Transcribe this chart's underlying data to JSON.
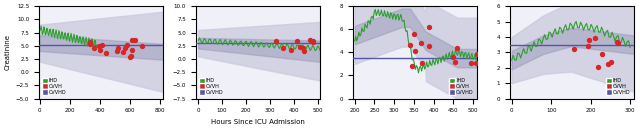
{
  "figure_title": "Hours Since ICU Admission",
  "ylabel": "Creatinine",
  "panels": [
    {
      "xlim": [
        -5,
        820
      ],
      "ylim": [
        -5.0,
        12.5
      ],
      "yticks": [
        -5.0,
        -2.5,
        0.0,
        2.5,
        5.0,
        7.5,
        10.0,
        12.5
      ],
      "xticks": [
        0,
        200,
        400,
        600,
        800
      ]
    },
    {
      "xlim": [
        -10,
        510
      ],
      "ylim": [
        -7.5,
        10.0
      ],
      "yticks": [
        -7.5,
        -5.0,
        -2.5,
        0.0,
        2.5,
        5.0,
        7.5,
        10.0
      ],
      "xticks": [
        0,
        100,
        200,
        300,
        400,
        500
      ]
    },
    {
      "xlim": [
        195,
        510
      ],
      "ylim": [
        0,
        8
      ],
      "yticks": [
        0,
        2,
        4,
        6,
        8
      ],
      "xticks": [
        200,
        250,
        300,
        350,
        400,
        450,
        500
      ]
    },
    {
      "xlim": [
        -5,
        310
      ],
      "ylim": [
        0,
        6
      ],
      "yticks": [
        0,
        1,
        2,
        3,
        4,
        5,
        6
      ],
      "xticks": [
        0,
        100,
        200,
        300
      ]
    }
  ],
  "colors": {
    "IHD": "#2ca02c",
    "CVVH": "#ff7f0e",
    "CVVHD": "#7f7fbf",
    "IHD_scatter": "#2ca02c",
    "CVVH_scatter": "#d62728",
    "CVVHD_line": "#5555aa",
    "mean_line": "#555599",
    "band1": "#c8c8dc",
    "band2": "#9898b8"
  },
  "background": "#f0f0f8"
}
